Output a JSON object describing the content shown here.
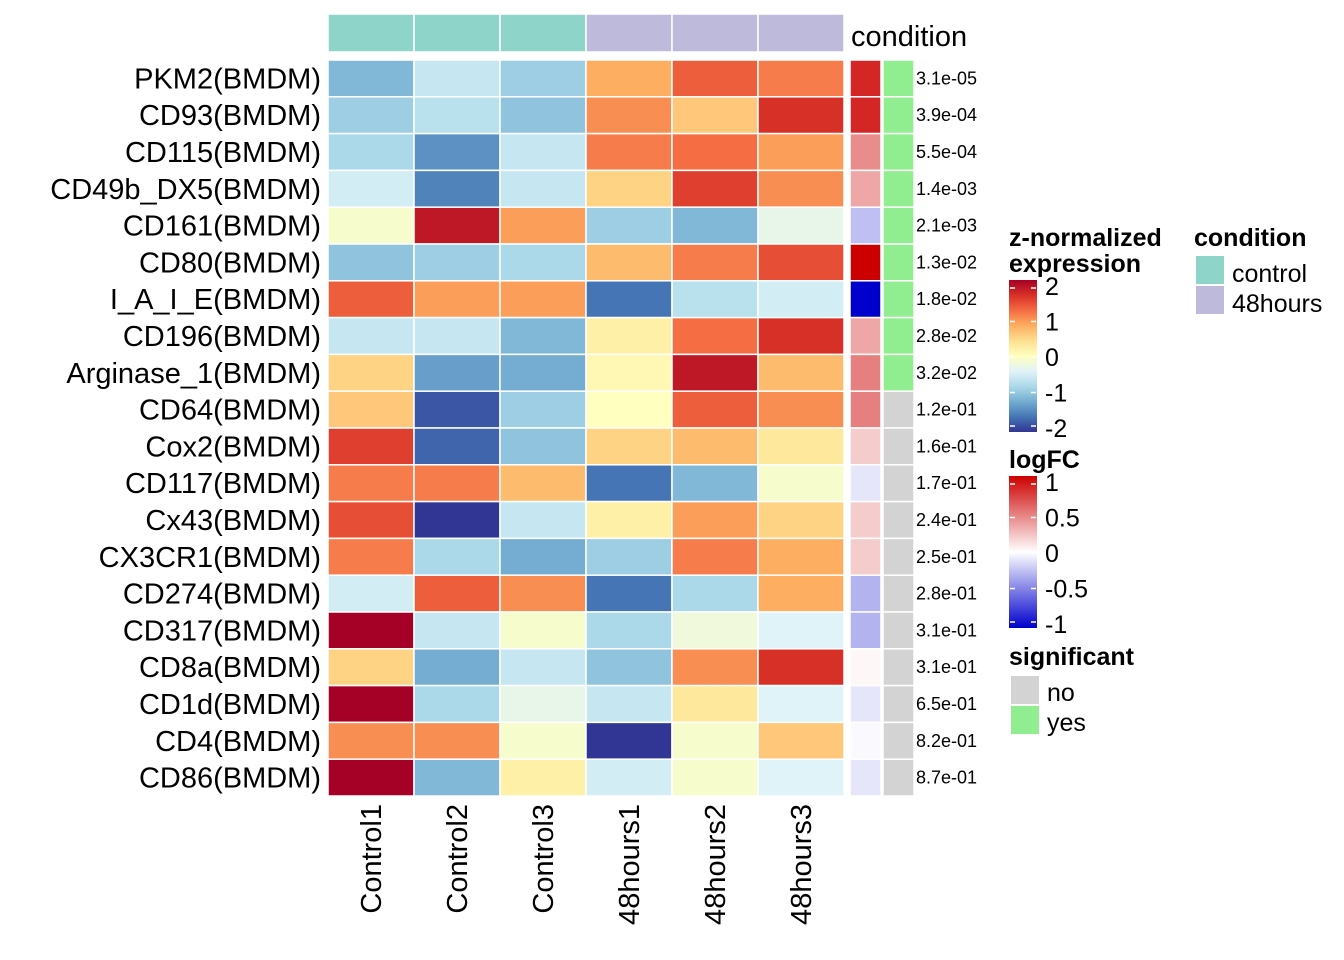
{
  "chart_data": {
    "type": "heatmap",
    "rows": [
      "PKM2(BMDM)",
      "CD93(BMDM)",
      "CD115(BMDM)",
      "CD49b_DX5(BMDM)",
      "CD161(BMDM)",
      "CD80(BMDM)",
      "I_A_I_E(BMDM)",
      "CD196(BMDM)",
      "Arginase_1(BMDM)",
      "CD64(BMDM)",
      "Cox2(BMDM)",
      "CD117(BMDM)",
      "Cx43(BMDM)",
      "CX3CR1(BMDM)",
      "CD274(BMDM)",
      "CD317(BMDM)",
      "CD8a(BMDM)",
      "CD1d(BMDM)",
      "CD4(BMDM)",
      "CD86(BMDM)"
    ],
    "columns": [
      "Control1",
      "Control2",
      "Control3",
      "48hours1",
      "48hours2",
      "48hours3"
    ],
    "column_condition": [
      "control",
      "control",
      "control",
      "48hours",
      "48hours",
      "48hours"
    ],
    "values": [
      [
        -1.1,
        -0.6,
        -0.9,
        0.8,
        1.3,
        1.1
      ],
      [
        -0.9,
        -0.7,
        -1.0,
        1.0,
        0.6,
        1.6
      ],
      [
        -0.8,
        -1.4,
        -0.6,
        1.1,
        1.2,
        0.9
      ],
      [
        -0.5,
        -1.5,
        -0.6,
        0.5,
        1.5,
        1.0
      ],
      [
        -0.1,
        1.8,
        0.9,
        -0.9,
        -1.1,
        -0.3
      ],
      [
        -1.0,
        -0.9,
        -0.8,
        0.7,
        1.1,
        1.4
      ],
      [
        1.3,
        0.9,
        0.9,
        -1.6,
        -0.7,
        -0.5
      ],
      [
        -0.6,
        -0.6,
        -1.1,
        0.2,
        1.2,
        1.6
      ],
      [
        0.5,
        -1.3,
        -1.2,
        0.1,
        1.8,
        0.7
      ],
      [
        0.6,
        -1.8,
        -0.9,
        0.0,
        1.3,
        1.0
      ],
      [
        1.5,
        -1.7,
        -1.0,
        0.5,
        0.7,
        0.3
      ],
      [
        1.1,
        1.1,
        0.7,
        -1.6,
        -1.1,
        -0.1
      ],
      [
        1.4,
        -2.0,
        -0.6,
        0.2,
        0.9,
        0.5
      ],
      [
        1.1,
        -0.8,
        -1.2,
        -0.9,
        1.1,
        0.8
      ],
      [
        -0.5,
        1.3,
        1.0,
        -1.6,
        -0.8,
        0.8
      ],
      [
        2.3,
        -0.6,
        -0.1,
        -0.8,
        -0.2,
        -0.4
      ],
      [
        0.5,
        -1.2,
        -0.6,
        -1.0,
        1.0,
        1.6
      ],
      [
        2.3,
        -0.8,
        -0.3,
        -0.6,
        0.3,
        -0.4
      ],
      [
        1.0,
        1.0,
        -0.1,
        -2.2,
        -0.1,
        0.6
      ],
      [
        2.2,
        -1.1,
        0.2,
        -0.5,
        -0.1,
        -0.4
      ]
    ],
    "logFC": [
      0.85,
      0.85,
      0.45,
      0.35,
      -0.25,
      1.0,
      -1.0,
      0.35,
      0.5,
      0.5,
      0.2,
      -0.1,
      0.2,
      0.2,
      -0.3,
      -0.3,
      0.03,
      -0.1,
      -0.02,
      -0.1
    ],
    "significant": [
      "yes",
      "yes",
      "yes",
      "yes",
      "yes",
      "yes",
      "yes",
      "yes",
      "yes",
      "no",
      "no",
      "no",
      "no",
      "no",
      "no",
      "no",
      "no",
      "no",
      "no",
      "no"
    ],
    "pvalues": [
      "3.1e-05",
      "3.9e-04",
      "5.5e-04",
      "1.4e-03",
      "2.1e-03",
      "1.3e-02",
      "1.8e-02",
      "2.8e-02",
      "3.2e-02",
      "1.2e-01",
      "1.6e-01",
      "1.7e-01",
      "2.4e-01",
      "2.5e-01",
      "2.8e-01",
      "3.1e-01",
      "3.1e-01",
      "6.5e-01",
      "8.2e-01",
      "8.7e-01"
    ],
    "condition_colors": {
      "control": "#8fd4c8",
      "48hours": "#bebadb"
    },
    "significant_colors": {
      "no": "#d3d3d3",
      "yes": "#90ee90"
    },
    "expression_scale": {
      "min": -2,
      "max": 2,
      "ticks": [
        "2",
        "1",
        "0",
        "-1",
        "-2"
      ]
    },
    "logfc_scale": {
      "min": -1,
      "max": 1,
      "ticks": [
        "1",
        "0.5",
        "0",
        "-0.5",
        "-1"
      ]
    }
  },
  "annotation_label": "condition",
  "legends": {
    "expression_title_line1": "z-normalized",
    "expression_title_line2": "expression",
    "condition_title": "condition",
    "condition_items": [
      "control",
      "48hours"
    ],
    "logfc_title": "logFC",
    "significant_title": "significant",
    "significant_items": [
      "no",
      "yes"
    ]
  }
}
